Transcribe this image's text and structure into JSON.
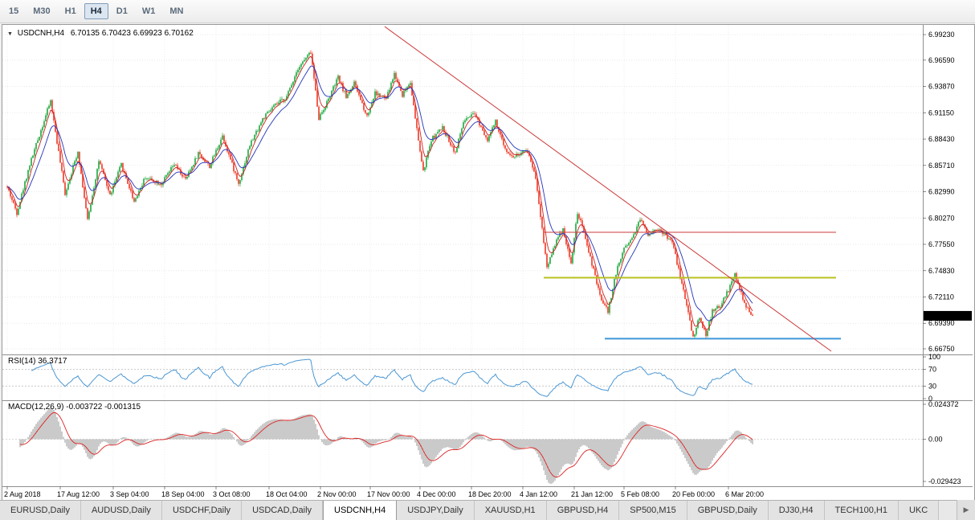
{
  "toolbar": {
    "buttons": [
      {
        "label": "15",
        "active": false
      },
      {
        "label": "M30",
        "active": false
      },
      {
        "label": "H1",
        "active": false
      },
      {
        "label": "H4",
        "active": true
      },
      {
        "label": "D1",
        "active": false
      },
      {
        "label": "W1",
        "active": false
      },
      {
        "label": "MN",
        "active": false
      }
    ]
  },
  "chart": {
    "title_symbol": "USDCNH,H4",
    "title_ohlc": "6.70135 6.70423 6.69923 6.70162",
    "price_axis": [
      "6.99230",
      "6.96590",
      "6.93870",
      "6.91150",
      "6.88430",
      "6.85710",
      "6.82990",
      "6.80270",
      "6.77550",
      "6.74830",
      "6.72110",
      "6.69390",
      "6.66750"
    ],
    "current_price": "6.70162"
  },
  "indicators": {
    "rsi": {
      "label": "RSI(14) 36.3717",
      "levels": [
        "100",
        "70",
        "30",
        "0"
      ],
      "level_values": [
        100,
        70,
        30,
        0
      ]
    },
    "macd": {
      "label": "MACD(12,26,9) -0.003722 -0.001315",
      "axis": [
        "0.024372",
        "0.00",
        "-0.029423"
      ]
    }
  },
  "chart_data": {
    "type": "candlestick",
    "title": "USDCNH,H4",
    "symbol": "USDCNH",
    "timeframe": "H4",
    "ohlc_display": {
      "open": "6.70135",
      "high": "6.70423",
      "low": "6.69923",
      "close": "6.70162"
    },
    "bars": 465,
    "y_axis": {
      "max": 7.0023,
      "min": 6.6617
    },
    "price_path": [
      [
        0,
        6.835
      ],
      [
        6,
        6.808
      ],
      [
        14,
        6.858
      ],
      [
        27,
        6.924
      ],
      [
        36,
        6.828
      ],
      [
        44,
        6.872
      ],
      [
        50,
        6.8
      ],
      [
        57,
        6.862
      ],
      [
        64,
        6.826
      ],
      [
        71,
        6.858
      ],
      [
        79,
        6.82
      ],
      [
        86,
        6.845
      ],
      [
        96,
        6.838
      ],
      [
        104,
        6.858
      ],
      [
        111,
        6.842
      ],
      [
        119,
        6.87
      ],
      [
        126,
        6.856
      ],
      [
        134,
        6.888
      ],
      [
        144,
        6.838
      ],
      [
        151,
        6.878
      ],
      [
        159,
        6.905
      ],
      [
        166,
        6.918
      ],
      [
        174,
        6.928
      ],
      [
        181,
        6.958
      ],
      [
        189,
        6.974
      ],
      [
        194,
        6.906
      ],
      [
        199,
        6.922
      ],
      [
        206,
        6.948
      ],
      [
        211,
        6.928
      ],
      [
        216,
        6.942
      ],
      [
        224,
        6.908
      ],
      [
        229,
        6.932
      ],
      [
        236,
        6.926
      ],
      [
        241,
        6.952
      ],
      [
        246,
        6.93
      ],
      [
        251,
        6.944
      ],
      [
        254,
        6.905
      ],
      [
        259,
        6.85
      ],
      [
        264,
        6.884
      ],
      [
        271,
        6.896
      ],
      [
        279,
        6.87
      ],
      [
        284,
        6.902
      ],
      [
        291,
        6.91
      ],
      [
        299,
        6.884
      ],
      [
        304,
        6.902
      ],
      [
        309,
        6.878
      ],
      [
        314,
        6.866
      ],
      [
        324,
        6.872
      ],
      [
        329,
        6.845
      ],
      [
        332,
        6.805
      ],
      [
        336,
        6.752
      ],
      [
        341,
        6.776
      ],
      [
        346,
        6.792
      ],
      [
        351,
        6.755
      ],
      [
        355,
        6.808
      ],
      [
        359,
        6.788
      ],
      [
        364,
        6.755
      ],
      [
        369,
        6.722
      ],
      [
        374,
        6.706
      ],
      [
        379,
        6.746
      ],
      [
        384,
        6.772
      ],
      [
        389,
        6.782
      ],
      [
        394,
        6.802
      ],
      [
        399,
        6.786
      ],
      [
        404,
        6.792
      ],
      [
        409,
        6.786
      ],
      [
        414,
        6.778
      ],
      [
        419,
        6.742
      ],
      [
        424,
        6.705
      ],
      [
        427,
        6.679
      ],
      [
        431,
        6.7
      ],
      [
        435,
        6.682
      ],
      [
        439,
        6.706
      ],
      [
        444,
        6.712
      ],
      [
        449,
        6.728
      ],
      [
        453,
        6.744
      ],
      [
        457,
        6.724
      ],
      [
        460,
        6.71
      ],
      [
        464,
        6.7016
      ]
    ],
    "date_ticks": [
      {
        "bar": 0,
        "label": "2 Aug 2018"
      },
      {
        "bar": 33,
        "label": "17 Aug 12:00"
      },
      {
        "bar": 66,
        "label": "3 Sep 04:00"
      },
      {
        "bar": 98,
        "label": "18 Sep 04:00"
      },
      {
        "bar": 130,
        "label": "3 Oct 08:00"
      },
      {
        "bar": 163,
        "label": "18 Oct 04:00"
      },
      {
        "bar": 195,
        "label": "2 Nov 00:00"
      },
      {
        "bar": 226,
        "label": "17 Nov 00:00"
      },
      {
        "bar": 257,
        "label": "4 Dec 00:00"
      },
      {
        "bar": 289,
        "label": "18 Dec 20:00"
      },
      {
        "bar": 321,
        "label": "4 Jan 12:00"
      },
      {
        "bar": 353,
        "label": "21 Jan 12:00"
      },
      {
        "bar": 384,
        "label": "5 Feb 08:00"
      },
      {
        "bar": 416,
        "label": "20 Feb 00:00"
      },
      {
        "bar": 449,
        "label": "6 Mar 20:00"
      }
    ],
    "overlays": {
      "trendline": {
        "x1_bar": 235,
        "price1": 7.0006,
        "x2_bar": 513,
        "price2": 6.665,
        "color": "#cc3b3b"
      },
      "hlines": [
        {
          "price": 6.788,
          "from_bar": 334,
          "to_bar": 516,
          "color": "#cc3b3b",
          "width": 1
        },
        {
          "price": 6.741,
          "from_bar": 334,
          "to_bar": 516,
          "color": "#b9c21f",
          "width": 2
        },
        {
          "price": 6.678,
          "from_bar": 372,
          "to_bar": 519,
          "color": "#3f98d9",
          "width": 2
        }
      ]
    },
    "rsi": {
      "period": 14,
      "last": "36.3717"
    },
    "macd": {
      "fast": 12,
      "slow": 26,
      "signal": 9,
      "last_macd": "-0.003722",
      "last_signal": "-0.001315",
      "axis_max": 0.024372,
      "axis_min": -0.029423
    },
    "colors": {
      "up": "#1aa83b",
      "down": "#ee3824",
      "ma_fast": "#cc2222",
      "ma_slow": "#2233bb",
      "rsi_line": "#4a96d2",
      "macd_hist": "#b4b4b4",
      "macd_signal": "#dd2222"
    }
  },
  "tabs": {
    "items": [
      {
        "label": "EURUSD,Daily",
        "active": false
      },
      {
        "label": "AUDUSD,Daily",
        "active": false
      },
      {
        "label": "USDCHF,Daily",
        "active": false
      },
      {
        "label": "USDCAD,Daily",
        "active": false
      },
      {
        "label": "USDCNH,H4",
        "active": true
      },
      {
        "label": "USDJPY,Daily",
        "active": false
      },
      {
        "label": "XAUUSD,H1",
        "active": false
      },
      {
        "label": "GBPUSD,H4",
        "active": false
      },
      {
        "label": "SP500,M15",
        "active": false
      },
      {
        "label": "GBPUSD,Daily",
        "active": false
      },
      {
        "label": "DJ30,H4",
        "active": false
      },
      {
        "label": "TECH100,H1",
        "active": false
      },
      {
        "label": "UKC",
        "active": false
      }
    ],
    "scroll_right_icon": "▶"
  }
}
